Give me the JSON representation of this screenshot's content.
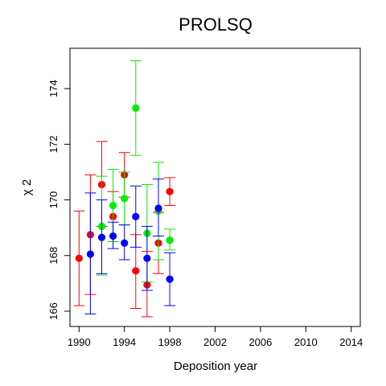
{
  "chart_data": {
    "type": "scatter",
    "title": "PROLSQ",
    "xlabel": "Deposition year",
    "ylabel": "χ 2",
    "xlim": [
      1989.2,
      2014.8
    ],
    "ylim": [
      165.45,
      175.45
    ],
    "xticks": [
      1990,
      1994,
      1998,
      2002,
      2006,
      2010,
      2014
    ],
    "yticks": [
      166,
      168,
      170,
      172,
      174
    ],
    "grid": false,
    "legend": "none",
    "series": [
      {
        "color": "#ff0000",
        "points": [
          {
            "x": 1990.0,
            "y": 167.9,
            "lo": 166.2,
            "hi": 169.6
          },
          {
            "x": 1991.0,
            "y": 168.75,
            "lo": 166.6,
            "hi": 170.9
          },
          {
            "x": 1992.0,
            "y": 170.55,
            "lo": 169.05,
            "hi": 172.1
          },
          {
            "x": 1993.0,
            "y": 169.4,
            "lo": 168.5,
            "hi": 170.3
          },
          {
            "x": 1994.0,
            "y": 170.9,
            "lo": 170.1,
            "hi": 171.7
          },
          {
            "x": 1995.0,
            "y": 167.45,
            "lo": 166.1,
            "hi": 168.75
          },
          {
            "x": 1996.0,
            "y": 166.95,
            "lo": 165.8,
            "hi": 168.15
          },
          {
            "x": 1997.0,
            "y": 168.45,
            "lo": 167.35,
            "hi": 169.55
          },
          {
            "x": 1998.0,
            "y": 170.3,
            "lo": 169.8,
            "hi": 170.8
          }
        ]
      },
      {
        "color": "#00ee00",
        "points": [
          {
            "x": 1992.0,
            "y": 169.05,
            "lo": 167.3,
            "hi": 170.85
          },
          {
            "x": 1993.0,
            "y": 169.8,
            "lo": 168.5,
            "hi": 171.1
          },
          {
            "x": 1994.0,
            "y": 170.05,
            "lo": 169.1,
            "hi": 171.0
          },
          {
            "x": 1995.0,
            "y": 173.3,
            "lo": 171.6,
            "hi": 175.0
          },
          {
            "x": 1996.0,
            "y": 168.8,
            "lo": 167.05,
            "hi": 170.55
          },
          {
            "x": 1997.0,
            "y": 169.6,
            "lo": 167.85,
            "hi": 171.35
          },
          {
            "x": 1998.0,
            "y": 168.55,
            "lo": 168.2,
            "hi": 168.95
          }
        ]
      },
      {
        "color": "#0000ff",
        "points": [
          {
            "x": 1991.0,
            "y": 168.05,
            "lo": 165.9,
            "hi": 170.25
          },
          {
            "x": 1992.0,
            "y": 168.65,
            "lo": 167.35,
            "hi": 170.0
          },
          {
            "x": 1993.0,
            "y": 168.7,
            "lo": 168.25,
            "hi": 169.2
          },
          {
            "x": 1994.0,
            "y": 168.45,
            "lo": 167.85,
            "hi": 169.1
          },
          {
            "x": 1995.0,
            "y": 169.4,
            "lo": 168.3,
            "hi": 170.5
          },
          {
            "x": 1996.0,
            "y": 167.9,
            "lo": 166.75,
            "hi": 169.05
          },
          {
            "x": 1997.0,
            "y": 169.7,
            "lo": 168.7,
            "hi": 170.75
          },
          {
            "x": 1998.0,
            "y": 167.15,
            "lo": 166.2,
            "hi": 168.1
          }
        ]
      }
    ]
  }
}
